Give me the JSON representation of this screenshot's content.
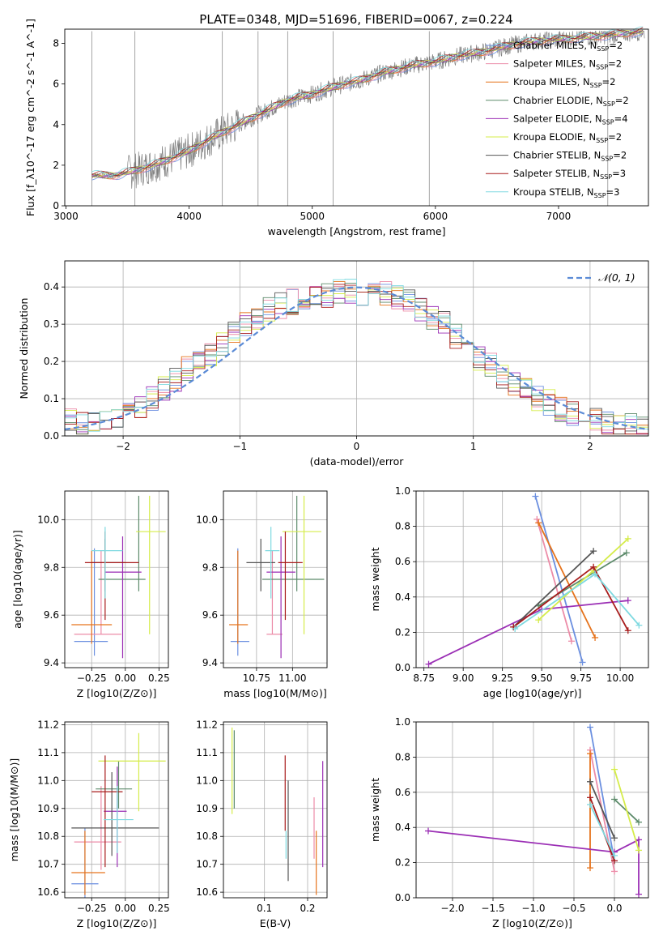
{
  "figure": {
    "title": "PLATE=0348, MJD=51696, FIBERID=0067, z=0.224"
  },
  "models": [
    {
      "name": "Chabrier MILES",
      "nssp": "2",
      "color": "#6b8fe0"
    },
    {
      "name": "Salpeter MILES",
      "nssp": "2",
      "color": "#ec8ca8"
    },
    {
      "name": "Kroupa MILES",
      "nssp": "2",
      "color": "#e6731c"
    },
    {
      "name": "Chabrier ELODIE",
      "nssp": "2",
      "color": "#5c8a6a"
    },
    {
      "name": "Salpeter ELODIE",
      "nssp": "4",
      "color": "#9b2fb5"
    },
    {
      "name": "Kroupa ELODIE",
      "nssp": "2",
      "color": "#d5ec4a"
    },
    {
      "name": "Chabrier STELIB",
      "nssp": "2",
      "color": "#555555"
    },
    {
      "name": "Salpeter STELIB",
      "nssp": "3",
      "color": "#a81c1c"
    },
    {
      "name": "Kroupa STELIB",
      "nssp": "3",
      "color": "#7ed9e0"
    }
  ],
  "chart_data": [
    {
      "id": "spectrum",
      "type": "line",
      "xlabel": "wavelength [Angstrom, rest frame]",
      "ylabel": "Flux [f_λ10^-17 erg cm^-2 s^-1 A^-1]",
      "xlim": [
        2990,
        7730
      ],
      "ylim": [
        0,
        8.7
      ],
      "xticks": [
        3000,
        4000,
        5000,
        6000,
        7000
      ],
      "yticks": [
        0,
        2,
        4,
        6,
        8
      ],
      "grid": false,
      "legend": "right",
      "data_color": "#808080",
      "continuum": {
        "x": [
          3210,
          3400,
          3600,
          3800,
          4000,
          4200,
          4400,
          4600,
          4800,
          5000,
          5200,
          5400,
          5600,
          5800,
          6000,
          6200,
          6400,
          6600,
          6800,
          7000,
          7200,
          7400,
          7700
        ],
        "y": [
          1.5,
          1.5,
          1.8,
          2.2,
          2.7,
          3.4,
          4.0,
          4.6,
          5.2,
          5.5,
          5.9,
          6.2,
          6.6,
          6.9,
          7.1,
          7.4,
          7.6,
          7.9,
          8.1,
          8.2,
          8.3,
          8.4,
          8.6
        ]
      }
    },
    {
      "id": "residuals",
      "type": "histogram",
      "xlabel": "(data-model)/error",
      "ylabel": "Normed distribution",
      "xlim": [
        -2.5,
        2.5
      ],
      "ylim": [
        0,
        0.47
      ],
      "xticks": [
        -2,
        -1,
        0,
        1,
        2
      ],
      "yticks": [
        0.0,
        0.1,
        0.2,
        0.3,
        0.4
      ],
      "grid": true,
      "legend": "top-right",
      "reference": {
        "name": "𝒩(0, 1)",
        "mean": 0,
        "sigma": 1,
        "color": "#5b8bd6"
      },
      "bin_edges": [
        -2.5,
        -2.4,
        -2.3,
        -2.2,
        -2.1,
        -2.0,
        -1.9,
        -1.8,
        -1.7,
        -1.6,
        -1.5,
        -1.4,
        -1.3,
        -1.2,
        -1.1,
        -1.0,
        -0.9,
        -0.8,
        -0.7,
        -0.6,
        -0.5,
        -0.4,
        -0.3,
        -0.2,
        -0.1,
        0.0,
        0.1,
        0.2,
        0.3,
        0.4,
        0.5,
        0.6,
        0.7,
        0.8,
        0.9,
        1.0,
        1.1,
        1.2,
        1.3,
        1.4,
        1.5,
        1.6,
        1.7,
        1.8,
        1.9,
        2.0,
        2.1,
        2.2,
        2.3,
        2.4,
        2.5
      ],
      "counts": [
        0.04,
        0.03,
        0.035,
        0.04,
        0.05,
        0.06,
        0.08,
        0.1,
        0.13,
        0.15,
        0.18,
        0.2,
        0.22,
        0.25,
        0.28,
        0.3,
        0.32,
        0.34,
        0.35,
        0.36,
        0.37,
        0.38,
        0.38,
        0.39,
        0.39,
        0.38,
        0.38,
        0.38,
        0.37,
        0.36,
        0.34,
        0.32,
        0.3,
        0.27,
        0.24,
        0.21,
        0.19,
        0.16,
        0.14,
        0.12,
        0.1,
        0.09,
        0.07,
        0.06,
        0.05,
        0.04,
        0.035,
        0.03,
        0.025,
        0.02
      ]
    },
    {
      "id": "age_vs_Z",
      "type": "errorbar",
      "xlabel": "Z [log10(Z/Z⊙)]",
      "ylabel": "age [log10(age/yr)]",
      "xlim": [
        -0.45,
        0.32
      ],
      "ylim": [
        9.38,
        10.12
      ],
      "xticks": [
        -0.25,
        0.0,
        0.25
      ],
      "xticklabels": [
        "−0.25",
        "0.00",
        "0.25"
      ],
      "yticks": [
        9.4,
        9.6,
        9.8,
        10.0
      ],
      "grid": true,
      "points": [
        {
          "model": 0,
          "x": -0.23,
          "xerr": [
            0.15,
            0.1
          ],
          "y": 9.49,
          "yerr": [
            0.06,
            0.39
          ]
        },
        {
          "model": 1,
          "x": -0.18,
          "xerr": [
            0.2,
            0.15
          ],
          "y": 9.52,
          "yerr": [
            0.0,
            0.35
          ]
        },
        {
          "model": 2,
          "x": -0.25,
          "xerr": [
            0.15,
            0.15
          ],
          "y": 9.56,
          "yerr": [
            0.08,
            0.31
          ]
        },
        {
          "model": 3,
          "x": 0.1,
          "xerr": [
            0.3,
            0.05
          ],
          "y": 9.75,
          "yerr": [
            0.05,
            0.35
          ]
        },
        {
          "model": 4,
          "x": -0.02,
          "xerr": [
            0.13,
            0.14
          ],
          "y": 9.78,
          "yerr": [
            0.36,
            0.15
          ]
        },
        {
          "model": 5,
          "x": 0.18,
          "xerr": [
            0.1,
            0.12
          ],
          "y": 9.95,
          "yerr": [
            0.43,
            0.15
          ]
        },
        {
          "model": 6,
          "x": -0.15,
          "xerr": [
            0.1,
            0.15
          ],
          "y": 9.82,
          "yerr": [
            0.12,
            0.1
          ]
        },
        {
          "model": 7,
          "x": -0.15,
          "xerr": [
            0.15,
            0.25
          ],
          "y": 9.82,
          "yerr": [
            0.24,
            0.13
          ]
        },
        {
          "model": 8,
          "x": -0.15,
          "xerr": [
            0.1,
            0.13
          ],
          "y": 9.87,
          "yerr": [
            0.2,
            0.1
          ]
        }
      ]
    },
    {
      "id": "age_vs_mass",
      "type": "errorbar",
      "xlabel": "mass [log10(M/M⊙)]",
      "ylabel": "",
      "xlim": [
        10.52,
        11.24
      ],
      "ylim": [
        9.38,
        10.12
      ],
      "xticks": [
        10.75,
        11.0
      ],
      "xticklabels": [
        "10.75",
        "11.00"
      ],
      "yticks": [
        9.4,
        9.6,
        9.8,
        10.0
      ],
      "grid": true,
      "points": [
        {
          "model": 0,
          "x": 10.62,
          "xerr": [
            0.05,
            0.08
          ],
          "y": 9.49,
          "yerr": [
            0.06,
            0.39
          ]
        },
        {
          "model": 1,
          "x": 10.86,
          "xerr": [
            0.04,
            0.07
          ],
          "y": 9.52,
          "yerr": [
            0.0,
            0.35
          ]
        },
        {
          "model": 2,
          "x": 10.62,
          "xerr": [
            0.06,
            0.07
          ],
          "y": 9.56,
          "yerr": [
            0.08,
            0.31
          ]
        },
        {
          "model": 3,
          "x": 11.03,
          "xerr": [
            0.24,
            0.19
          ],
          "y": 9.75,
          "yerr": [
            0.05,
            0.35
          ]
        },
        {
          "model": 4,
          "x": 10.92,
          "xerr": [
            0.1,
            0.1
          ],
          "y": 9.78,
          "yerr": [
            0.36,
            0.15
          ]
        },
        {
          "model": 5,
          "x": 11.08,
          "xerr": [
            0.15,
            0.12
          ],
          "y": 9.95,
          "yerr": [
            0.43,
            0.15
          ]
        },
        {
          "model": 6,
          "x": 10.78,
          "xerr": [
            0.1,
            0.1
          ],
          "y": 9.82,
          "yerr": [
            0.12,
            0.1
          ]
        },
        {
          "model": 7,
          "x": 10.95,
          "xerr": [
            0.05,
            0.12
          ],
          "y": 9.82,
          "yerr": [
            0.24,
            0.13
          ]
        },
        {
          "model": 8,
          "x": 10.85,
          "xerr": [
            0.04,
            0.06
          ],
          "y": 9.87,
          "yerr": [
            0.2,
            0.1
          ]
        }
      ]
    },
    {
      "id": "weight_vs_age",
      "type": "line",
      "xlabel": "age [log10(age/yr)]",
      "ylabel": "mass weight",
      "xlim": [
        8.7,
        10.18
      ],
      "ylim": [
        0,
        1
      ],
      "xticks": [
        8.75,
        9.0,
        9.25,
        9.5,
        9.75,
        10.0
      ],
      "xticklabels": [
        "8.75",
        "9.00",
        "9.25",
        "9.50",
        "9.75",
        "10.00"
      ],
      "yticks": [
        0.0,
        0.2,
        0.4,
        0.6,
        0.8,
        1.0
      ],
      "grid": true,
      "series": [
        {
          "model": 0,
          "x": [
            9.46,
            9.76
          ],
          "y": [
            0.97,
            0.03
          ]
        },
        {
          "model": 1,
          "x": [
            9.47,
            9.69
          ],
          "y": [
            0.84,
            0.15
          ]
        },
        {
          "model": 2,
          "x": [
            9.48,
            9.84
          ],
          "y": [
            0.82,
            0.17
          ]
        },
        {
          "model": 3,
          "x": [
            9.48,
            10.04
          ],
          "y": [
            0.35,
            0.65
          ]
        },
        {
          "model": 4,
          "x": [
            8.78,
            9.5,
            10.05
          ],
          "y": [
            0.02,
            0.33,
            0.38
          ]
        },
        {
          "model": 5,
          "x": [
            9.48,
            9.83,
            10.05
          ],
          "y": [
            0.27,
            0.55,
            0.73
          ]
        },
        {
          "model": 6,
          "x": [
            9.32,
            9.83
          ],
          "y": [
            0.23,
            0.66
          ]
        },
        {
          "model": 7,
          "x": [
            9.32,
            9.83,
            10.05
          ],
          "y": [
            0.23,
            0.57,
            0.21
          ]
        },
        {
          "model": 8,
          "x": [
            9.33,
            9.84,
            10.12
          ],
          "y": [
            0.22,
            0.53,
            0.24
          ]
        }
      ]
    },
    {
      "id": "mass_vs_Z",
      "type": "errorbar",
      "xlabel": "Z [log10(Z/Z⊙)]",
      "ylabel": "mass [log10(M/M⊙)]",
      "xlim": [
        -0.45,
        0.32
      ],
      "ylim": [
        10.58,
        11.21
      ],
      "xticks": [
        -0.25,
        0.0,
        0.25
      ],
      "xticklabels": [
        "−0.25",
        "0.00",
        "0.25"
      ],
      "yticks": [
        10.6,
        10.7,
        10.8,
        10.9,
        11.0,
        11.1,
        11.2
      ],
      "grid": true,
      "points": [
        {
          "model": 0,
          "x": -0.3,
          "xerr": [
            0.1,
            0.1
          ],
          "y": 10.63,
          "yerr": [
            0.05,
            0.2
          ]
        },
        {
          "model": 1,
          "x": -0.18,
          "xerr": [
            0.2,
            0.15
          ],
          "y": 10.78,
          "yerr": [
            0.1,
            0.2
          ]
        },
        {
          "model": 2,
          "x": -0.3,
          "xerr": [
            0.1,
            0.15
          ],
          "y": 10.67,
          "yerr": [
            0.08,
            0.15
          ]
        },
        {
          "model": 3,
          "x": -0.05,
          "xerr": [
            0.17,
            0.1
          ],
          "y": 10.97,
          "yerr": [
            0.07,
            0.1
          ]
        },
        {
          "model": 4,
          "x": -0.06,
          "xerr": [
            0.1,
            0.07
          ],
          "y": 10.89,
          "yerr": [
            0.2,
            0.16
          ]
        },
        {
          "model": 5,
          "x": 0.1,
          "xerr": [
            0.3,
            0.2
          ],
          "y": 11.07,
          "yerr": [
            0.18,
            0.1
          ]
        },
        {
          "model": 6,
          "x": -0.1,
          "xerr": [
            0.3,
            0.35
          ],
          "y": 10.83,
          "yerr": [
            0.1,
            0.2
          ]
        },
        {
          "model": 7,
          "x": -0.15,
          "xerr": [
            0.1,
            0.13
          ],
          "y": 10.96,
          "yerr": [
            0.27,
            0.13
          ]
        },
        {
          "model": 8,
          "x": -0.06,
          "xerr": [
            0.1,
            0.12
          ],
          "y": 10.86,
          "yerr": [
            0.12,
            0.12
          ]
        }
      ]
    },
    {
      "id": "mass_vs_ebv",
      "type": "errorbar",
      "xlabel": "E(B-V)",
      "ylabel": "",
      "xlim": [
        0.005,
        0.245
      ],
      "ylim": [
        10.58,
        11.21
      ],
      "xticks": [
        0.1,
        0.2
      ],
      "xticklabels": [
        "0.1",
        "0.2"
      ],
      "yticks": [
        10.6,
        10.7,
        10.8,
        10.9,
        11.0,
        11.1,
        11.2
      ],
      "grid": true,
      "points": [
        {
          "model": 0,
          "x": 0.03,
          "yerr": [
            0.0,
            0.0
          ],
          "y": 10.63
        },
        {
          "model": 1,
          "x": 0.215,
          "y": 10.82,
          "yerr": [
            0.1,
            0.12
          ]
        },
        {
          "model": 2,
          "x": 0.22,
          "y": 10.67,
          "yerr": [
            0.08,
            0.15
          ]
        },
        {
          "model": 3,
          "x": 0.03,
          "y": 11.0,
          "yerr": [
            0.1,
            0.18
          ]
        },
        {
          "model": 4,
          "x": 0.235,
          "y": 10.89,
          "yerr": [
            0.2,
            0.18
          ]
        },
        {
          "model": 5,
          "x": 0.025,
          "y": 11.03,
          "yerr": [
            0.15,
            0.16
          ]
        },
        {
          "model": 6,
          "x": 0.155,
          "y": 10.82,
          "yerr": [
            0.18,
            0.18
          ]
        },
        {
          "model": 7,
          "x": 0.148,
          "y": 10.96,
          "yerr": [
            0.14,
            0.13
          ]
        },
        {
          "model": 8,
          "x": 0.15,
          "y": 10.77,
          "yerr": [
            0.05,
            0.05
          ]
        }
      ]
    },
    {
      "id": "weight_vs_Z",
      "type": "line",
      "xlabel": "Z [log10(Z/Z⊙)]",
      "ylabel": "mass weight",
      "xlim": [
        -2.45,
        0.42
      ],
      "ylim": [
        0,
        1
      ],
      "xticks": [
        -2.0,
        -1.5,
        -1.0,
        -0.5,
        0.0
      ],
      "xticklabels": [
        "−2.0",
        "−1.5",
        "−1.0",
        "−0.5",
        "0.0"
      ],
      "yticks": [
        0.0,
        0.2,
        0.4,
        0.6,
        0.8,
        1.0
      ],
      "grid": true,
      "series": [
        {
          "model": 0,
          "x": [
            -0.3,
            0.0
          ],
          "y": [
            0.97,
            0.21
          ]
        },
        {
          "model": 1,
          "x": [
            -0.3,
            0.0
          ],
          "y": [
            0.84,
            0.15
          ]
        },
        {
          "model": 2,
          "x": [
            -0.3,
            -0.3
          ],
          "y": [
            0.82,
            0.17
          ]
        },
        {
          "model": 3,
          "x": [
            0.0,
            0.3
          ],
          "y": [
            0.56,
            0.43
          ]
        },
        {
          "model": 4,
          "x": [
            -2.3,
            0.0,
            0.3,
            0.3
          ],
          "y": [
            0.38,
            0.26,
            0.33,
            0.02
          ]
        },
        {
          "model": 5,
          "x": [
            0.0,
            0.3
          ],
          "y": [
            0.73,
            0.27
          ]
        },
        {
          "model": 6,
          "x": [
            -0.3,
            0.0
          ],
          "y": [
            0.66,
            0.34
          ]
        },
        {
          "model": 7,
          "x": [
            -0.3,
            0.0
          ],
          "y": [
            0.57,
            0.21
          ]
        },
        {
          "model": 8,
          "x": [
            -0.3,
            0.0
          ],
          "y": [
            0.53,
            0.24
          ]
        }
      ]
    }
  ]
}
